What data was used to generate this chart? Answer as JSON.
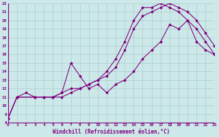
{
  "xlabel": "Windchill (Refroidissement éolien,°C)",
  "background_color": "#cce8e8",
  "grid_color": "#aacccc",
  "line_color": "#800080",
  "xlim": [
    0,
    23
  ],
  "ylim": [
    8,
    22
  ],
  "xticks": [
    0,
    1,
    2,
    3,
    4,
    5,
    6,
    7,
    8,
    9,
    10,
    11,
    12,
    13,
    14,
    15,
    16,
    17,
    18,
    19,
    20,
    21,
    22,
    23
  ],
  "yticks": [
    8,
    9,
    10,
    11,
    12,
    13,
    14,
    15,
    16,
    17,
    18,
    19,
    20,
    21,
    22
  ],
  "curve1_x": [
    0,
    1,
    2,
    3,
    4,
    5,
    6,
    7,
    8,
    9,
    10,
    11,
    12,
    13,
    14,
    15,
    16,
    17,
    18,
    19,
    20,
    21,
    22,
    23
  ],
  "curve1_y": [
    8.5,
    11.0,
    11.5,
    11.0,
    11.0,
    11.0,
    11.5,
    15.0,
    13.5,
    12.0,
    12.5,
    11.5,
    12.5,
    13.0,
    14.0,
    15.5,
    16.5,
    17.5,
    19.5,
    19.0,
    20.0,
    19.0,
    17.5,
    16.0
  ],
  "curve2_x": [
    0,
    1,
    3,
    4,
    5,
    6,
    7,
    8,
    9,
    10,
    11,
    12,
    13,
    14,
    15,
    16,
    17,
    18,
    19,
    20,
    21,
    22,
    23
  ],
  "curve2_y": [
    8.5,
    11.0,
    11.0,
    11.0,
    11.0,
    11.5,
    12.0,
    12.0,
    12.5,
    13.0,
    13.5,
    14.5,
    16.5,
    19.0,
    20.5,
    21.0,
    21.5,
    22.0,
    21.5,
    21.0,
    20.0,
    18.5,
    17.0
  ],
  "curve3_x": [
    0,
    1,
    3,
    4,
    5,
    6,
    7,
    8,
    9,
    10,
    11,
    12,
    13,
    14,
    15,
    16,
    17,
    18,
    19,
    20,
    21,
    22,
    23
  ],
  "curve3_y": [
    8.5,
    11.0,
    11.0,
    11.0,
    11.0,
    11.0,
    11.5,
    12.0,
    12.5,
    13.0,
    14.0,
    15.5,
    17.5,
    20.0,
    21.5,
    21.5,
    22.0,
    21.5,
    21.0,
    20.0,
    17.5,
    16.5,
    16.0
  ],
  "tick_fontsize": 4.5,
  "xlabel_fontsize": 5.5,
  "marker": "D",
  "markersize": 1.5,
  "linewidth": 0.8
}
